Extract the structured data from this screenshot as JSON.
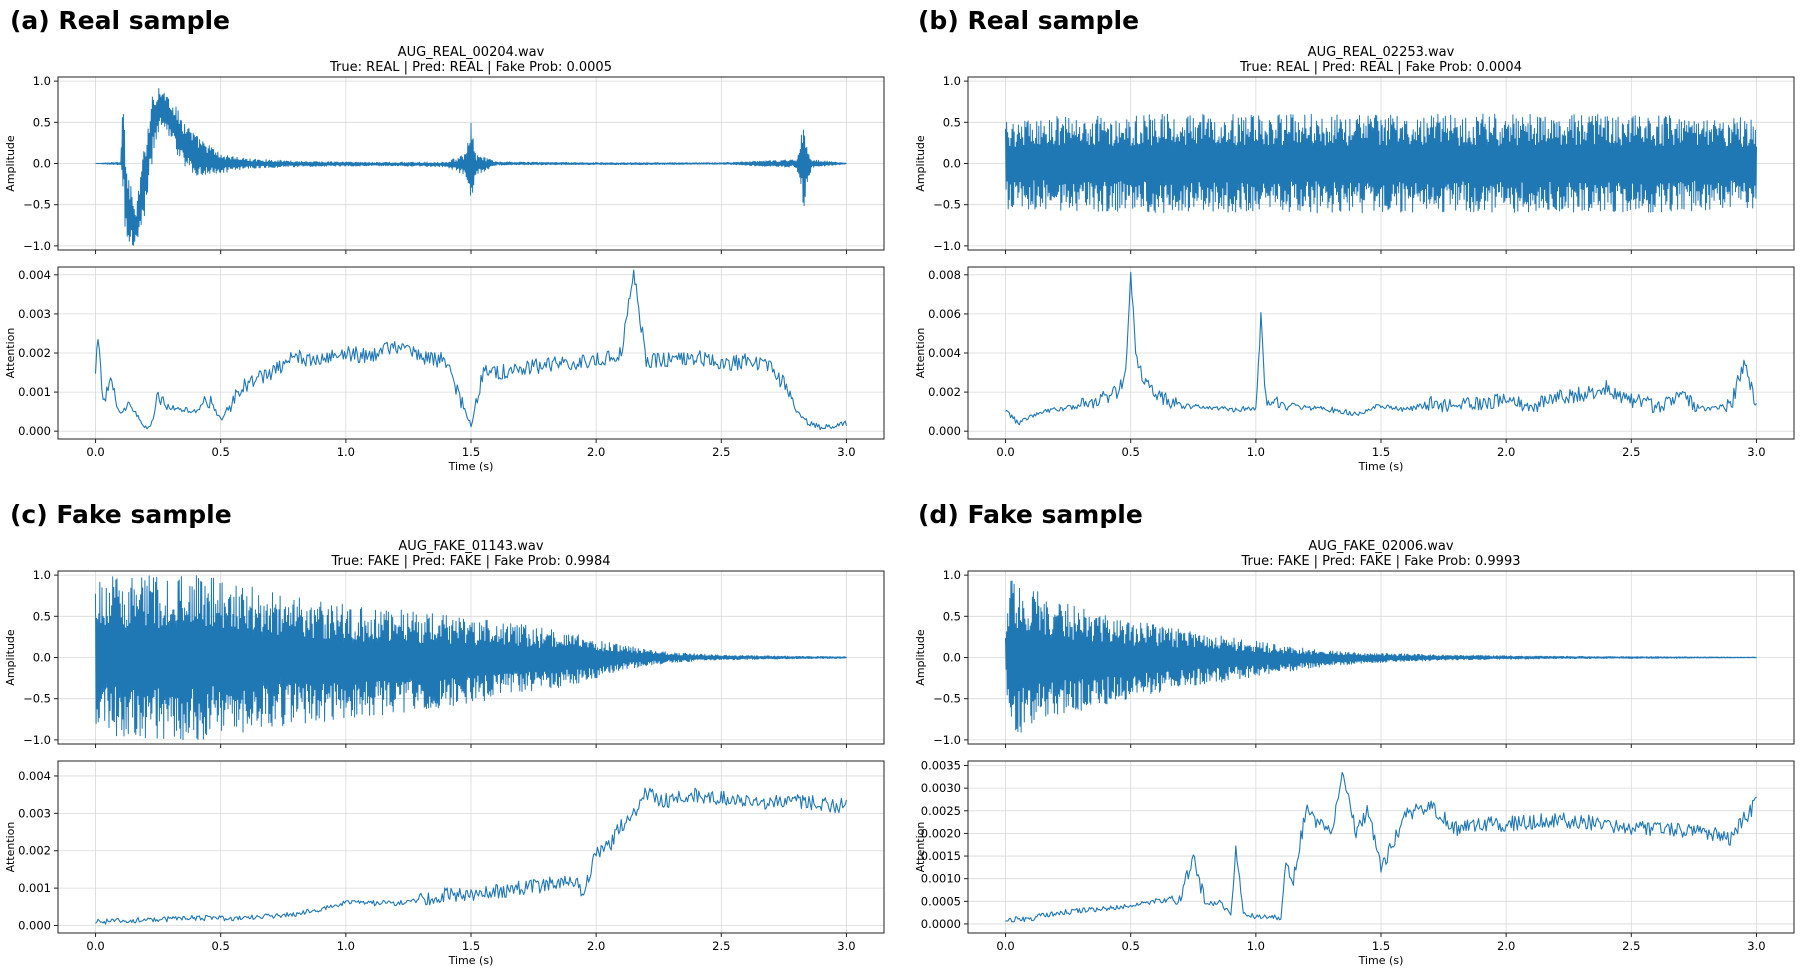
{
  "colors": {
    "series": "#1f77b4",
    "grid": "#d9d9d9",
    "axis": "#222222",
    "background": "#ffffff"
  },
  "chart_data": [
    {
      "panel_label": "(a) Real sample",
      "file": "AUG_REAL_00204.wav",
      "prediction": "True: REAL | Pred: REAL | Fake Prob: 0.0005",
      "waveform": {
        "type": "line",
        "ylabel": "Amplitude",
        "xlabel": "",
        "xlim": [
          -0.15,
          3.15
        ],
        "ylim": [
          -1.05,
          1.05
        ],
        "xticks": [
          0.0,
          0.5,
          1.0,
          1.5,
          2.0,
          2.5,
          3.0
        ],
        "yticks": [
          -1.0,
          -0.5,
          0.0,
          0.5,
          1.0
        ],
        "ytick_labels": [
          "−1.0",
          "−0.5",
          "0.0",
          "0.5",
          "1.0"
        ],
        "grid": true,
        "x": [
          0.0,
          0.1,
          0.11,
          0.12,
          0.16,
          0.2,
          0.23,
          0.26,
          0.3,
          0.35,
          0.4,
          0.5,
          0.6,
          0.8,
          1.0,
          1.2,
          1.4,
          1.48,
          1.5,
          1.52,
          1.6,
          2.0,
          2.5,
          2.8,
          2.83,
          2.86,
          3.0
        ],
        "upper": [
          0.0,
          0.02,
          1.0,
          0.1,
          -0.6,
          0.35,
          0.92,
          0.95,
          0.8,
          0.55,
          0.35,
          0.12,
          0.06,
          0.03,
          0.02,
          0.015,
          0.02,
          0.12,
          0.5,
          0.12,
          0.02,
          0.01,
          0.01,
          0.05,
          0.5,
          0.05,
          0.005
        ],
        "lower": [
          0.0,
          -0.02,
          -0.3,
          -1.0,
          -1.0,
          -0.6,
          0.1,
          0.4,
          0.3,
          -0.05,
          -0.15,
          -0.12,
          -0.06,
          -0.04,
          -0.03,
          -0.03,
          -0.04,
          -0.15,
          -0.45,
          -0.15,
          -0.02,
          -0.015,
          -0.01,
          -0.05,
          -0.55,
          -0.05,
          -0.005
        ]
      },
      "attention": {
        "type": "line",
        "ylabel": "Attention",
        "xlabel": "Time (s)",
        "xlim": [
          -0.15,
          3.15
        ],
        "ylim": [
          -0.0002,
          0.0042
        ],
        "xticks": [
          0.0,
          0.5,
          1.0,
          1.5,
          2.0,
          2.5,
          3.0
        ],
        "xtick_labels": [
          "0.0",
          "0.5",
          "1.0",
          "1.5",
          "2.0",
          "2.5",
          "3.0"
        ],
        "yticks": [
          0.0,
          0.001,
          0.002,
          0.003,
          0.004
        ],
        "ytick_labels": [
          "0.000",
          "0.001",
          "0.002",
          "0.003",
          "0.004"
        ],
        "grid": true,
        "x": [
          0.0,
          0.01,
          0.03,
          0.06,
          0.1,
          0.13,
          0.2,
          0.22,
          0.25,
          0.3,
          0.4,
          0.45,
          0.5,
          0.55,
          0.6,
          0.7,
          0.8,
          0.9,
          1.0,
          1.1,
          1.2,
          1.3,
          1.4,
          1.45,
          1.48,
          1.5,
          1.55,
          1.6,
          1.8,
          2.0,
          2.1,
          2.15,
          2.2,
          2.4,
          2.5,
          2.6,
          2.7,
          2.75,
          2.8,
          2.85,
          2.9,
          3.0
        ],
        "y": [
          0.0016,
          0.0024,
          0.0008,
          0.0012,
          0.0004,
          0.0007,
          0.0001,
          0.0001,
          0.0009,
          0.0006,
          0.0005,
          0.0008,
          0.0003,
          0.0008,
          0.0012,
          0.0015,
          0.0019,
          0.0018,
          0.002,
          0.0019,
          0.0022,
          0.0019,
          0.0018,
          0.0009,
          0.0005,
          0.0001,
          0.0016,
          0.0015,
          0.0017,
          0.0018,
          0.002,
          0.0041,
          0.0018,
          0.0019,
          0.0017,
          0.0018,
          0.0016,
          0.0012,
          0.0005,
          0.0002,
          0.0001,
          0.0002
        ]
      }
    },
    {
      "panel_label": "(b) Real sample",
      "file": "AUG_REAL_02253.wav",
      "prediction": "True: REAL | Pred: REAL | Fake Prob: 0.0004",
      "waveform": {
        "type": "line",
        "ylabel": "Amplitude",
        "xlabel": "",
        "xlim": [
          -0.15,
          3.15
        ],
        "ylim": [
          -1.05,
          1.05
        ],
        "xticks": [
          0.0,
          0.5,
          1.0,
          1.5,
          2.0,
          2.5,
          3.0
        ],
        "yticks": [
          -1.0,
          -0.5,
          0.0,
          0.5,
          1.0
        ],
        "ytick_labels": [
          "−1.0",
          "−0.5",
          "0.0",
          "0.5",
          "1.0"
        ],
        "grid": true,
        "x": [
          0.0,
          0.5,
          1.0,
          1.5,
          2.0,
          2.5,
          3.0
        ],
        "upper": [
          0.55,
          0.6,
          0.6,
          0.6,
          0.6,
          0.6,
          0.55
        ],
        "lower": [
          -0.55,
          -0.6,
          -0.6,
          -0.6,
          -0.6,
          -0.6,
          -0.55
        ]
      },
      "attention": {
        "type": "line",
        "ylabel": "Attention",
        "xlabel": "Time (s)",
        "xlim": [
          -0.15,
          3.15
        ],
        "ylim": [
          -0.0004,
          0.0084
        ],
        "xticks": [
          0.0,
          0.5,
          1.0,
          1.5,
          2.0,
          2.5,
          3.0
        ],
        "xtick_labels": [
          "0.0",
          "0.5",
          "1.0",
          "1.5",
          "2.0",
          "2.5",
          "3.0"
        ],
        "yticks": [
          0.0,
          0.002,
          0.004,
          0.006,
          0.008
        ],
        "ytick_labels": [
          "0.000",
          "0.002",
          "0.004",
          "0.006",
          "0.008"
        ],
        "grid": true,
        "x": [
          0.0,
          0.05,
          0.1,
          0.2,
          0.3,
          0.4,
          0.45,
          0.48,
          0.5,
          0.52,
          0.55,
          0.6,
          0.7,
          0.8,
          0.9,
          1.0,
          1.02,
          1.04,
          1.1,
          1.2,
          1.3,
          1.4,
          1.5,
          1.6,
          1.7,
          1.8,
          1.9,
          2.0,
          2.1,
          2.2,
          2.3,
          2.4,
          2.5,
          2.6,
          2.7,
          2.8,
          2.9,
          2.95,
          3.0
        ],
        "y": [
          0.0011,
          0.0004,
          0.0008,
          0.0011,
          0.0013,
          0.0017,
          0.002,
          0.003,
          0.008,
          0.004,
          0.0026,
          0.0018,
          0.0013,
          0.0012,
          0.0011,
          0.0012,
          0.0059,
          0.0016,
          0.0014,
          0.0012,
          0.0011,
          0.0009,
          0.0013,
          0.0011,
          0.0014,
          0.0013,
          0.0014,
          0.0016,
          0.0013,
          0.0017,
          0.0019,
          0.0022,
          0.0016,
          0.0013,
          0.0017,
          0.0011,
          0.0014,
          0.0035,
          0.0013
        ]
      }
    },
    {
      "panel_label": "(c) Fake sample",
      "file": "AUG_FAKE_01143.wav",
      "prediction": "True: FAKE | Pred: FAKE | Fake Prob: 0.9984",
      "waveform": {
        "type": "line",
        "ylabel": "Amplitude",
        "xlabel": "",
        "xlim": [
          -0.15,
          3.15
        ],
        "ylim": [
          -1.05,
          1.05
        ],
        "xticks": [
          0.0,
          0.5,
          1.0,
          1.5,
          2.0,
          2.5,
          3.0
        ],
        "yticks": [
          -1.0,
          -0.5,
          0.0,
          0.5,
          1.0
        ],
        "ytick_labels": [
          "−1.0",
          "−0.5",
          "0.0",
          "0.5",
          "1.0"
        ],
        "grid": true,
        "x": [
          0.0,
          0.1,
          0.2,
          0.4,
          0.55,
          0.7,
          1.0,
          1.3,
          1.6,
          1.9,
          2.1,
          2.3,
          2.5,
          2.8,
          3.0
        ],
        "upper": [
          1.0,
          1.0,
          1.0,
          1.0,
          0.95,
          0.8,
          0.65,
          0.55,
          0.45,
          0.3,
          0.15,
          0.06,
          0.03,
          0.015,
          0.01
        ],
        "lower": [
          -1.0,
          -1.0,
          -1.0,
          -1.0,
          -0.95,
          -0.85,
          -0.75,
          -0.65,
          -0.5,
          -0.35,
          -0.15,
          -0.06,
          -0.03,
          -0.015,
          -0.01
        ]
      },
      "attention": {
        "type": "line",
        "ylabel": "Attention",
        "xlabel": "Time (s)",
        "xlim": [
          -0.15,
          3.15
        ],
        "ylim": [
          -0.0002,
          0.0044
        ],
        "xticks": [
          0.0,
          0.5,
          1.0,
          1.5,
          2.0,
          2.5,
          3.0
        ],
        "xtick_labels": [
          "0.0",
          "0.5",
          "1.0",
          "1.5",
          "2.0",
          "2.5",
          "3.0"
        ],
        "yticks": [
          0.0,
          0.001,
          0.002,
          0.003,
          0.004
        ],
        "ytick_labels": [
          "0.000",
          "0.001",
          "0.002",
          "0.003",
          "0.004"
        ],
        "grid": true,
        "x": [
          0.0,
          0.2,
          0.4,
          0.6,
          0.8,
          1.0,
          1.2,
          1.4,
          1.6,
          1.8,
          1.9,
          1.95,
          2.0,
          2.05,
          2.1,
          2.15,
          2.2,
          2.25,
          2.4,
          2.6,
          2.8,
          3.0
        ],
        "y": [
          0.0001,
          0.00015,
          0.0002,
          0.0002,
          0.0003,
          0.0006,
          0.0006,
          0.0008,
          0.0009,
          0.0011,
          0.0013,
          0.0009,
          0.0019,
          0.0021,
          0.0027,
          0.003,
          0.0036,
          0.0033,
          0.0035,
          0.0033,
          0.0033,
          0.0032
        ]
      }
    },
    {
      "panel_label": "(d) Fake sample",
      "file": "AUG_FAKE_02006.wav",
      "prediction": "True: FAKE | Pred: FAKE | Fake Prob: 0.9993",
      "waveform": {
        "type": "line",
        "ylabel": "Amplitude",
        "xlabel": "",
        "xlim": [
          -0.15,
          3.15
        ],
        "ylim": [
          -1.05,
          1.05
        ],
        "xticks": [
          0.0,
          0.5,
          1.0,
          1.5,
          2.0,
          2.5,
          3.0
        ],
        "yticks": [
          -1.0,
          -0.5,
          0.0,
          0.5,
          1.0
        ],
        "ytick_labels": [
          "−1.0",
          "−0.5",
          "0.0",
          "0.5",
          "1.0"
        ],
        "grid": true,
        "x": [
          0.0,
          0.02,
          0.05,
          0.1,
          0.2,
          0.3,
          0.5,
          0.7,
          0.9,
          1.1,
          1.3,
          1.5,
          1.8,
          2.2,
          2.6,
          3.0
        ],
        "upper": [
          0.3,
          1.0,
          0.95,
          0.85,
          0.7,
          0.6,
          0.45,
          0.35,
          0.25,
          0.15,
          0.08,
          0.05,
          0.03,
          0.015,
          0.01,
          0.005
        ],
        "lower": [
          -0.3,
          -1.0,
          -0.95,
          -0.85,
          -0.75,
          -0.65,
          -0.5,
          -0.38,
          -0.28,
          -0.18,
          -0.1,
          -0.06,
          -0.03,
          -0.015,
          -0.01,
          -0.005
        ]
      },
      "attention": {
        "type": "line",
        "ylabel": "Attention",
        "xlabel": "Time (s)",
        "xlim": [
          -0.15,
          3.15
        ],
        "ylim": [
          -0.0002,
          0.0036
        ],
        "xticks": [
          0.0,
          0.5,
          1.0,
          1.5,
          2.0,
          2.5,
          3.0
        ],
        "xtick_labels": [
          "0.0",
          "0.5",
          "1.0",
          "1.5",
          "2.0",
          "2.5",
          "3.0"
        ],
        "yticks": [
          0.0,
          0.0005,
          0.001,
          0.0015,
          0.002,
          0.0025,
          0.003,
          0.0035
        ],
        "ytick_labels": [
          "0.0000",
          "0.0005",
          "0.0010",
          "0.0015",
          "0.0020",
          "0.0025",
          "0.0030",
          "0.0035"
        ],
        "grid": true,
        "x": [
          0.0,
          0.05,
          0.1,
          0.15,
          0.3,
          0.5,
          0.6,
          0.7,
          0.75,
          0.8,
          0.85,
          0.9,
          0.92,
          0.95,
          1.05,
          1.1,
          1.12,
          1.15,
          1.2,
          1.3,
          1.35,
          1.4,
          1.45,
          1.5,
          1.55,
          1.6,
          1.7,
          1.8,
          1.9,
          2.0,
          2.2,
          2.4,
          2.6,
          2.8,
          2.9,
          3.0
        ],
        "y": [
          0.0001,
          0.0001,
          0.0001,
          0.0002,
          0.0003,
          0.0004,
          0.0005,
          0.0006,
          0.0015,
          0.0004,
          0.0005,
          0.0002,
          0.0017,
          0.0002,
          0.00015,
          0.00015,
          0.0014,
          0.001,
          0.0025,
          0.002,
          0.0034,
          0.002,
          0.0025,
          0.0012,
          0.0018,
          0.0024,
          0.0026,
          0.0021,
          0.0022,
          0.0022,
          0.0023,
          0.0022,
          0.0021,
          0.002,
          0.0019,
          0.0027
        ]
      }
    }
  ]
}
